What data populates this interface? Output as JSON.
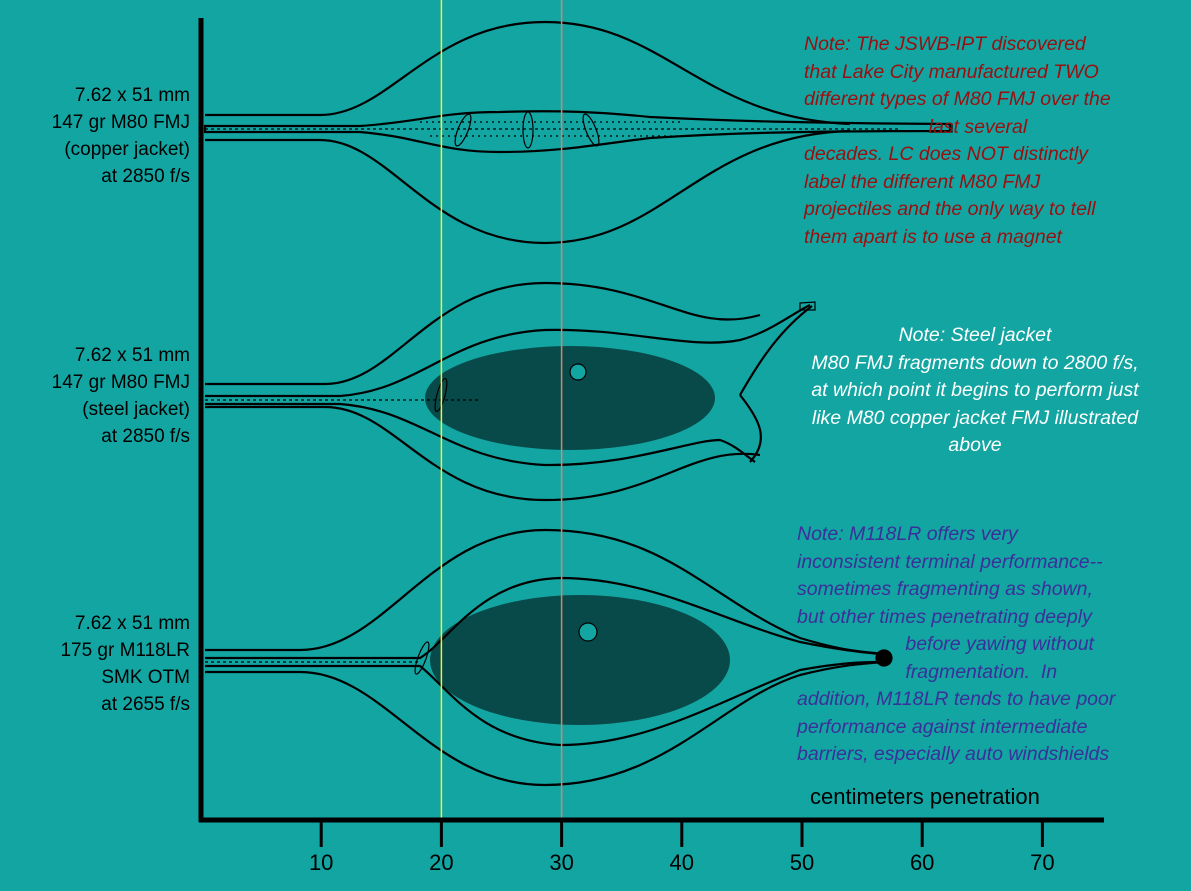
{
  "rounds": [
    {
      "lines": [
        "7.62 x 51 mm",
        "147 gr M80 FMJ",
        "(copper jacket)",
        "at 2850 f/s"
      ]
    },
    {
      "lines": [
        "7.62 x 51 mm",
        "147 gr M80 FMJ",
        "(steel jacket)",
        "at 2850 f/s"
      ]
    },
    {
      "lines": [
        "7.62 x 51 mm",
        "175 gr M118LR",
        "SMK OTM",
        "at 2655 f/s"
      ]
    }
  ],
  "notes": [
    {
      "lines": [
        "Note: The JSWB-IPT discovered",
        "that Lake City manufactured TWO",
        "different types of M80 FMJ over the",
        "                       last several",
        "decades. LC does NOT distinctly",
        "label the different M80 FMJ",
        "projectiles and the only way to tell",
        "them apart is to use a magnet"
      ],
      "color": "#9a0f0f"
    },
    {
      "lines": [
        "Note:  Steel jacket",
        "M80 FMJ fragments down to 2800 f/s,",
        "at which point it begins to perform just",
        "like M80 copper jacket FMJ  illustrated",
        "above"
      ],
      "color": "#ffffff"
    },
    {
      "lines": [
        "Note: M118LR offers very",
        "inconsistent terminal performance--",
        "sometimes fragmenting as shown,",
        "but other times penetrating deeply",
        "                    before yawing without",
        "                    fragmentation.  In",
        "addition, M118LR tends to have poor",
        "performance against intermediate",
        "barriers, especially auto windshields"
      ],
      "color": "#3b2f9a"
    }
  ],
  "x_axis": {
    "title": "centimeters penetration",
    "ticks": [
      "10",
      "20",
      "30",
      "40",
      "50",
      "60",
      "70"
    ],
    "tick_values": [
      10,
      20,
      30,
      40,
      50,
      60,
      70
    ],
    "range": [
      0,
      75
    ]
  },
  "reference_lines": [
    {
      "value": 20,
      "color": "#f2ef3a"
    },
    {
      "value": 30,
      "color": "#d9836b"
    }
  ],
  "colors": {
    "background": "#12a5a2",
    "axis": "#000000"
  }
}
